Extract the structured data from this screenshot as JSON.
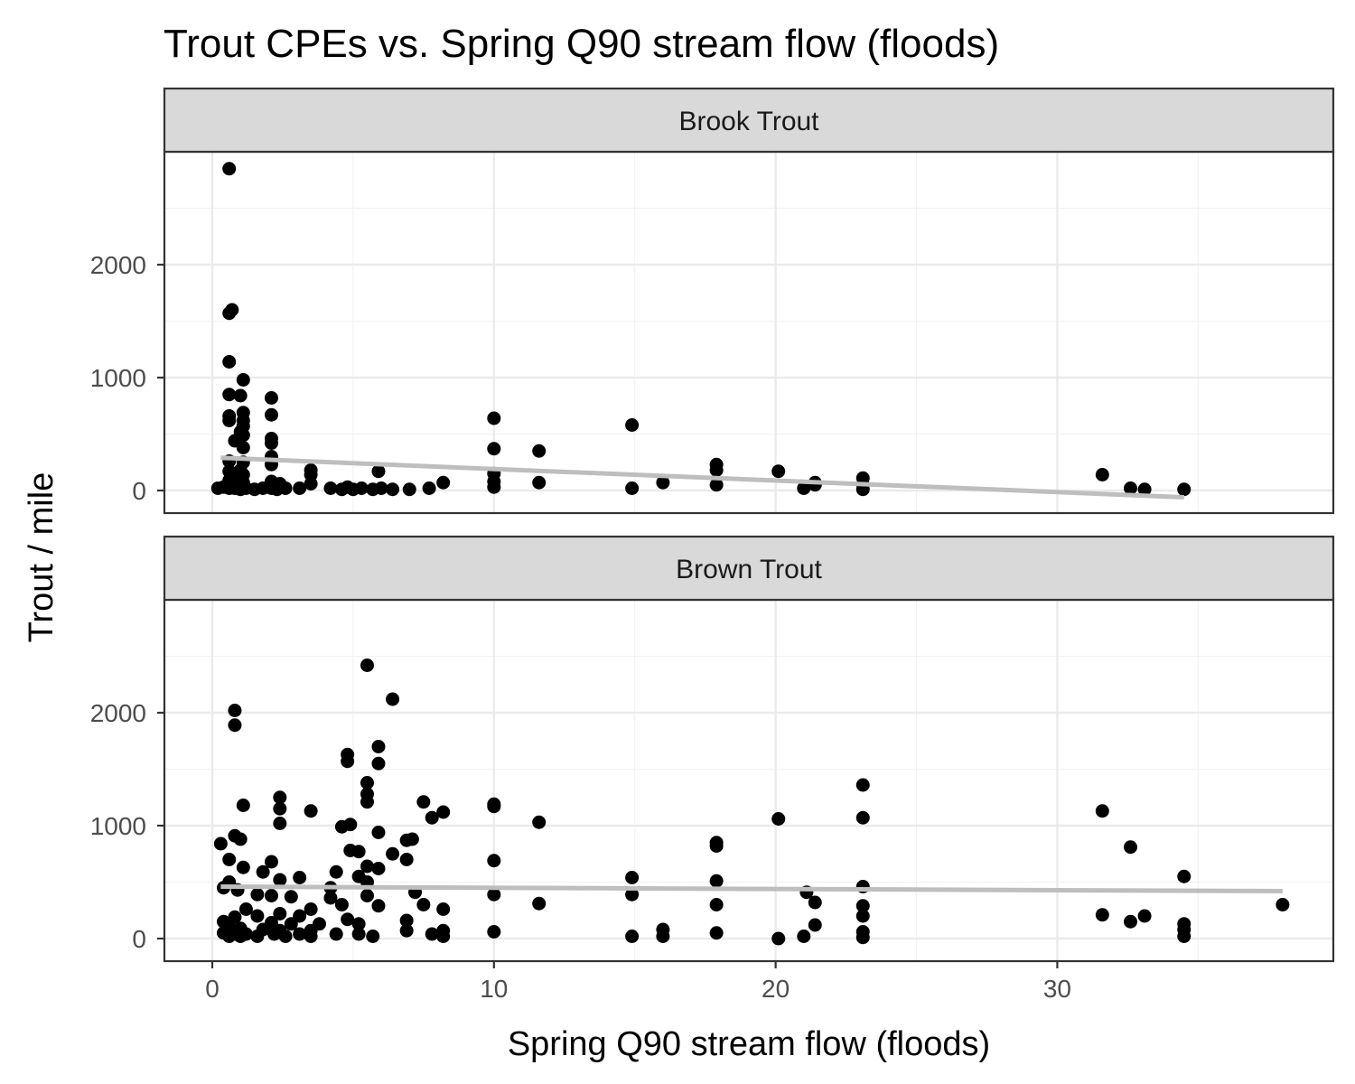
{
  "chart_data": {
    "type": "scatter",
    "title": "Trout CPEs vs. Spring Q90 stream flow (floods)",
    "xlabel": "Spring Q90 stream flow (floods)",
    "ylabel": "Trout / mile",
    "xlim": [
      -1.7,
      39.8
    ],
    "ylim": [
      -200,
      3000
    ],
    "x_ticks": [
      0,
      10,
      20,
      30
    ],
    "y_ticks": [
      0,
      1000,
      2000
    ],
    "grid": true,
    "point_color": "#000000",
    "trend_color": "#bebebe",
    "panels": [
      {
        "label": "Brook Trout",
        "points": [
          [
            0.6,
            2850
          ],
          [
            0.7,
            1600
          ],
          [
            0.6,
            1570
          ],
          [
            0.6,
            1140
          ],
          [
            1.1,
            980
          ],
          [
            0.6,
            850
          ],
          [
            1.0,
            840
          ],
          [
            2.1,
            820
          ],
          [
            0.6,
            660
          ],
          [
            1.1,
            690
          ],
          [
            2.1,
            670
          ],
          [
            0.6,
            620
          ],
          [
            1.1,
            620
          ],
          [
            1.1,
            570
          ],
          [
            1.0,
            520
          ],
          [
            1.1,
            490
          ],
          [
            0.8,
            440
          ],
          [
            2.1,
            460
          ],
          [
            2.1,
            420
          ],
          [
            1.1,
            380
          ],
          [
            2.1,
            300
          ],
          [
            0.6,
            260
          ],
          [
            1.1,
            250
          ],
          [
            2.1,
            230
          ],
          [
            0.6,
            170
          ],
          [
            1.0,
            180
          ],
          [
            1.1,
            140
          ],
          [
            0.6,
            90
          ],
          [
            1.0,
            110
          ],
          [
            1.1,
            70
          ],
          [
            2.1,
            80
          ],
          [
            2.4,
            60
          ],
          [
            0.2,
            20
          ],
          [
            0.4,
            30
          ],
          [
            0.6,
            20
          ],
          [
            0.8,
            20
          ],
          [
            1.0,
            10
          ],
          [
            1.2,
            20
          ],
          [
            1.5,
            10
          ],
          [
            1.8,
            20
          ],
          [
            2.1,
            20
          ],
          [
            2.3,
            10
          ],
          [
            2.6,
            20
          ],
          [
            3.1,
            20
          ],
          [
            3.5,
            60
          ],
          [
            3.5,
            140
          ],
          [
            3.5,
            180
          ],
          [
            4.2,
            20
          ],
          [
            4.6,
            10
          ],
          [
            4.8,
            30
          ],
          [
            5.0,
            10
          ],
          [
            5.3,
            20
          ],
          [
            5.7,
            10
          ],
          [
            5.9,
            170
          ],
          [
            6.0,
            20
          ],
          [
            6.4,
            10
          ],
          [
            7.0,
            10
          ],
          [
            7.7,
            20
          ],
          [
            8.2,
            70
          ],
          [
            10.0,
            640
          ],
          [
            10.0,
            370
          ],
          [
            10.0,
            150
          ],
          [
            10.0,
            80
          ],
          [
            10.0,
            30
          ],
          [
            11.6,
            350
          ],
          [
            11.6,
            70
          ],
          [
            14.9,
            580
          ],
          [
            14.9,
            20
          ],
          [
            16.0,
            70
          ],
          [
            17.9,
            230
          ],
          [
            17.9,
            180
          ],
          [
            17.9,
            50
          ],
          [
            20.1,
            170
          ],
          [
            21.0,
            20
          ],
          [
            21.4,
            50
          ],
          [
            21.4,
            70
          ],
          [
            23.1,
            110
          ],
          [
            23.1,
            50
          ],
          [
            23.1,
            10
          ],
          [
            31.6,
            140
          ],
          [
            32.6,
            20
          ],
          [
            33.1,
            10
          ],
          [
            34.5,
            10
          ]
        ],
        "trend": [
          [
            0.3,
            290
          ],
          [
            34.5,
            -60
          ]
        ]
      },
      {
        "label": "Brown Trout",
        "points": [
          [
            5.5,
            2420
          ],
          [
            6.4,
            2120
          ],
          [
            0.8,
            2020
          ],
          [
            0.8,
            1890
          ],
          [
            5.9,
            1700
          ],
          [
            4.8,
            1630
          ],
          [
            4.8,
            1570
          ],
          [
            5.9,
            1550
          ],
          [
            5.5,
            1380
          ],
          [
            5.5,
            1280
          ],
          [
            5.5,
            1210
          ],
          [
            2.4,
            1250
          ],
          [
            7.5,
            1210
          ],
          [
            2.4,
            1150
          ],
          [
            1.1,
            1180
          ],
          [
            3.5,
            1130
          ],
          [
            8.2,
            1120
          ],
          [
            7.8,
            1070
          ],
          [
            10.0,
            1190
          ],
          [
            10.0,
            1170
          ],
          [
            11.6,
            1030
          ],
          [
            2.4,
            1020
          ],
          [
            4.6,
            990
          ],
          [
            4.9,
            1010
          ],
          [
            5.9,
            940
          ],
          [
            0.8,
            910
          ],
          [
            1.0,
            880
          ],
          [
            6.9,
            870
          ],
          [
            7.1,
            880
          ],
          [
            0.3,
            840
          ],
          [
            4.9,
            780
          ],
          [
            5.2,
            770
          ],
          [
            6.4,
            750
          ],
          [
            6.9,
            700
          ],
          [
            0.6,
            700
          ],
          [
            2.1,
            680
          ],
          [
            10.0,
            690
          ],
          [
            5.5,
            640
          ],
          [
            5.9,
            620
          ],
          [
            1.1,
            630
          ],
          [
            1.8,
            590
          ],
          [
            4.4,
            590
          ],
          [
            5.2,
            550
          ],
          [
            2.4,
            520
          ],
          [
            3.1,
            540
          ],
          [
            0.6,
            500
          ],
          [
            5.5,
            500
          ],
          [
            0.4,
            450
          ],
          [
            0.9,
            430
          ],
          [
            4.2,
            450
          ],
          [
            7.2,
            410
          ],
          [
            1.6,
            390
          ],
          [
            2.1,
            380
          ],
          [
            2.8,
            370
          ],
          [
            4.2,
            360
          ],
          [
            5.5,
            380
          ],
          [
            5.9,
            290
          ],
          [
            7.5,
            300
          ],
          [
            4.6,
            300
          ],
          [
            1.2,
            260
          ],
          [
            3.5,
            260
          ],
          [
            8.2,
            260
          ],
          [
            2.4,
            220
          ],
          [
            0.8,
            190
          ],
          [
            1.6,
            200
          ],
          [
            3.1,
            200
          ],
          [
            4.8,
            170
          ],
          [
            6.9,
            160
          ],
          [
            0.4,
            150
          ],
          [
            2.1,
            140
          ],
          [
            2.8,
            130
          ],
          [
            3.8,
            130
          ],
          [
            5.2,
            130
          ],
          [
            0.6,
            100
          ],
          [
            1.0,
            90
          ],
          [
            1.8,
            80
          ],
          [
            2.4,
            70
          ],
          [
            3.5,
            70
          ],
          [
            6.9,
            70
          ],
          [
            8.2,
            70
          ],
          [
            0.4,
            50
          ],
          [
            0.8,
            40
          ],
          [
            1.2,
            40
          ],
          [
            2.2,
            40
          ],
          [
            3.1,
            40
          ],
          [
            4.4,
            40
          ],
          [
            5.2,
            40
          ],
          [
            7.8,
            40
          ],
          [
            0.6,
            20
          ],
          [
            1.0,
            20
          ],
          [
            1.6,
            20
          ],
          [
            2.6,
            20
          ],
          [
            3.5,
            20
          ],
          [
            5.7,
            20
          ],
          [
            8.2,
            20
          ],
          [
            10.0,
            60
          ],
          [
            10.0,
            390
          ],
          [
            11.6,
            310
          ],
          [
            14.9,
            540
          ],
          [
            14.9,
            390
          ],
          [
            14.9,
            20
          ],
          [
            16.0,
            80
          ],
          [
            16.0,
            20
          ],
          [
            17.9,
            850
          ],
          [
            17.9,
            820
          ],
          [
            17.9,
            510
          ],
          [
            17.9,
            300
          ],
          [
            17.9,
            50
          ],
          [
            20.1,
            1060
          ],
          [
            20.1,
            0
          ],
          [
            21.0,
            20
          ],
          [
            21.1,
            410
          ],
          [
            21.4,
            320
          ],
          [
            21.4,
            120
          ],
          [
            23.1,
            1360
          ],
          [
            23.1,
            1070
          ],
          [
            23.1,
            460
          ],
          [
            23.1,
            290
          ],
          [
            23.1,
            200
          ],
          [
            23.1,
            60
          ],
          [
            23.1,
            10
          ],
          [
            31.6,
            1130
          ],
          [
            31.6,
            210
          ],
          [
            32.6,
            810
          ],
          [
            32.6,
            150
          ],
          [
            33.1,
            200
          ],
          [
            34.5,
            550
          ],
          [
            34.5,
            130
          ],
          [
            34.5,
            80
          ],
          [
            34.5,
            20
          ],
          [
            38.0,
            300
          ]
        ],
        "trend": [
          [
            0.3,
            460
          ],
          [
            38.0,
            420
          ]
        ]
      }
    ]
  }
}
